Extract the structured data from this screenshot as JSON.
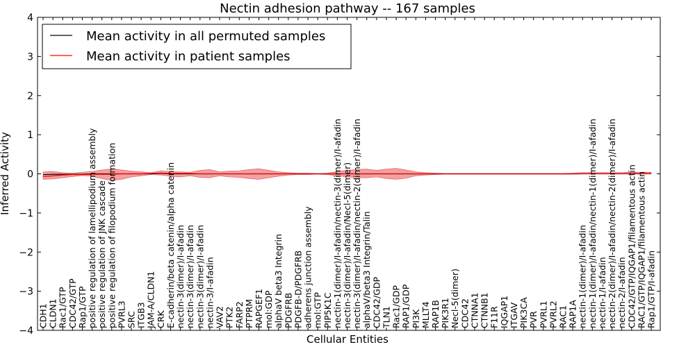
{
  "chart_data": {
    "type": "line",
    "title": "Nectin adhesion pathway -- 167 samples",
    "xlabel": "Cellular Entities",
    "ylabel": "Inferred Activity",
    "ylim": [
      -4,
      4
    ],
    "yticks": [
      -4,
      -3,
      -2,
      -1,
      0,
      1,
      2,
      3,
      4
    ],
    "legend_position": "upper-left",
    "categories": [
      "CDH1",
      "CLDN1",
      "Rac1/GTP",
      "CDC42/GTP",
      "Rap1/GTP",
      "positive regulation of lamellipodium assembly",
      "positive regulation of JNK cascade",
      "positive regulation of filopodium formation",
      "PVRL3",
      "SRC",
      "ITGB3",
      "JAM-A/CLDN1",
      "CRK",
      "E-cadherin/beta catenin/alpha catenin",
      "nectin-3(dimer)/I-afadin",
      "nectin-3(dimer)/I-afadin",
      "nectin-3(dimer)/I-afadin",
      "nectin-3/I-afadin",
      "VAV2",
      "PTK2",
      "FARP2",
      "PTPRM",
      "RAPGEF1",
      "mol:GDP",
      "alphaV beta3 Integrin",
      "PDGFRB",
      "PDGFB-D/PDGFRB",
      "adherens junction assembly",
      "mol:GTP",
      "PIP5K1C",
      "nectin-1(dimer)/I-afadin/nectin-3(dimer)/I-afadin",
      "nectin-3(dimer)/I-afadin/Necl-5(dimer)",
      "nectin-3(dimer)/I-afadin/nectin-2(dimer)/I-afadin",
      "alphaV/beta3 Integrin/Talin",
      "CDC42/GDP",
      "TLN1",
      "Rac1/GDP",
      "RAP1/GDP",
      "PI3K",
      "MLLT4",
      "RAP1B",
      "PIK3R1",
      "Necl-5(dimer)",
      "CDC42",
      "CTNNA1",
      "CTNNB1",
      "F11R",
      "IQGAP1",
      "ITGAV",
      "PIK3CA",
      "PVR",
      "PVRL1",
      "PVRL2",
      "RAC1",
      "RAP1A",
      "nectin-1(dimer)/I-afadin",
      "nectin-1(dimer)/I-afadin/nectin-1(dimer)/I-afadin",
      "nectin-1/I-afadin",
      "nectin-2(dimer)/I-afadin/nectin-2(dimer)/I-afadin",
      "nectin-2/I-afadin",
      "CDC42/GTP/IQGAP1/filamentous actin",
      "RAC1/GTP/IQGAP1/filamentous actin",
      "Rap1/GTP/I-afadin"
    ],
    "series": [
      {
        "name": "Mean activity in all permuted samples",
        "color": "#000000",
        "values": [
          -0.02,
          -0.01,
          -0.01,
          -0.01,
          -0.01,
          0,
          0,
          0,
          0,
          0,
          0,
          0,
          0.01,
          0,
          0,
          0,
          0,
          0,
          0,
          0,
          0,
          0,
          0,
          0,
          0,
          0,
          0,
          0,
          0,
          0,
          0,
          0,
          0,
          0,
          0,
          0,
          0,
          0,
          0,
          0,
          0,
          0,
          0,
          0,
          0,
          0,
          0,
          0,
          0,
          0,
          0,
          0,
          0,
          0,
          0,
          0.01,
          0.01,
          0.01,
          0.01,
          0.01,
          0.01,
          0.01,
          0.01
        ]
      },
      {
        "name": "Mean activity in patient samples",
        "color": "#ff0000",
        "values": [
          -0.07,
          -0.05,
          -0.03,
          -0.02,
          -0.02,
          -0.01,
          -0.01,
          -0.01,
          0,
          0,
          0,
          0.01,
          0.02,
          0.01,
          0.01,
          0.01,
          0,
          0,
          0,
          0,
          0,
          0,
          0,
          0,
          0,
          0,
          0,
          0,
          0,
          0,
          0,
          0,
          0,
          0,
          0,
          0,
          0,
          0,
          0,
          0,
          0,
          0,
          0,
          0,
          0,
          0,
          0,
          0,
          0,
          0,
          0,
          0,
          0,
          0,
          0,
          0.01,
          0.01,
          0.01,
          0.01,
          0.01,
          0.01,
          0.01,
          0.01
        ]
      }
    ],
    "patient_band": {
      "lower": [
        -0.14,
        -0.13,
        -0.1,
        -0.07,
        -0.04,
        -0.06,
        -0.12,
        -0.17,
        -0.14,
        -0.08,
        -0.05,
        -0.02,
        -0.03,
        -0.06,
        -0.08,
        -0.05,
        -0.09,
        -0.1,
        -0.05,
        -0.08,
        -0.09,
        -0.12,
        -0.14,
        -0.1,
        -0.06,
        -0.03,
        -0.02,
        -0.02,
        -0.01,
        -0.02,
        -0.05,
        -0.08,
        -0.1,
        -0.1,
        -0.08,
        -0.12,
        -0.14,
        -0.11,
        -0.05,
        -0.03,
        -0.02,
        -0.01,
        -0.01,
        -0.01,
        -0.01,
        -0.01,
        -0.01,
        -0.01,
        -0.01,
        -0.01,
        -0.01,
        -0.01,
        -0.01,
        -0.01,
        -0.01,
        -0.01,
        -0.01,
        -0.01,
        -0.01,
        -0.01,
        -0.01,
        -0.01,
        -0.01
      ],
      "upper": [
        0.05,
        0.06,
        0.03,
        0.02,
        0.04,
        0.06,
        0.1,
        0.13,
        0.1,
        0.07,
        0.05,
        0.03,
        0.08,
        0.06,
        0.05,
        0.04,
        0.09,
        0.11,
        0.05,
        0.07,
        0.08,
        0.11,
        0.13,
        0.09,
        0.05,
        0.03,
        0.02,
        0.02,
        0.01,
        0.02,
        0.06,
        0.09,
        0.11,
        0.12,
        0.09,
        0.12,
        0.14,
        0.1,
        0.05,
        0.03,
        0.02,
        0.01,
        0.01,
        0.01,
        0.01,
        0.01,
        0.01,
        0.01,
        0.01,
        0.01,
        0.01,
        0.01,
        0.01,
        0.01,
        0.02,
        0.03,
        0.03,
        0.03,
        0.03,
        0.03,
        0.04,
        0.04,
        0.04
      ]
    },
    "permuted_band": {
      "lower": [
        -0.04,
        -0.04,
        -0.03,
        -0.03,
        -0.02,
        -0.02,
        -0.02,
        -0.02,
        -0.02,
        -0.02,
        -0.02,
        -0.02,
        -0.02,
        -0.02,
        -0.02,
        -0.02,
        -0.02,
        -0.02,
        -0.02,
        -0.02,
        -0.02,
        -0.02,
        -0.02,
        -0.02,
        -0.02,
        -0.02,
        -0.02,
        -0.02,
        -0.02,
        -0.02,
        -0.02,
        -0.02,
        -0.02,
        -0.02,
        -0.02,
        -0.02,
        -0.02,
        -0.02,
        -0.02,
        -0.02,
        -0.02,
        -0.02,
        -0.02,
        -0.02,
        -0.02,
        -0.02,
        -0.02,
        -0.02,
        -0.02,
        -0.02,
        -0.02,
        -0.02,
        -0.02,
        -0.02,
        -0.02,
        -0.02,
        -0.02,
        -0.02,
        -0.02,
        -0.02,
        -0.02,
        -0.02,
        -0.02
      ],
      "upper": [
        0.01,
        0.01,
        0.01,
        0.01,
        0.01,
        0.01,
        0.01,
        0.01,
        0.01,
        0.01,
        0.01,
        0.01,
        0.02,
        0.02,
        0.02,
        0.02,
        0.02,
        0.02,
        0.02,
        0.02,
        0.02,
        0.02,
        0.02,
        0.02,
        0.02,
        0.02,
        0.02,
        0.02,
        0.02,
        0.02,
        0.02,
        0.02,
        0.02,
        0.02,
        0.02,
        0.02,
        0.02,
        0.02,
        0.02,
        0.02,
        0.02,
        0.02,
        0.02,
        0.02,
        0.02,
        0.02,
        0.02,
        0.02,
        0.02,
        0.02,
        0.02,
        0.02,
        0.02,
        0.02,
        0.03,
        0.03,
        0.03,
        0.03,
        0.03,
        0.03,
        0.03,
        0.03,
        0.03
      ]
    },
    "colors": {
      "patient_band": "#f08080",
      "permuted_band": "#c8c8dc"
    }
  }
}
